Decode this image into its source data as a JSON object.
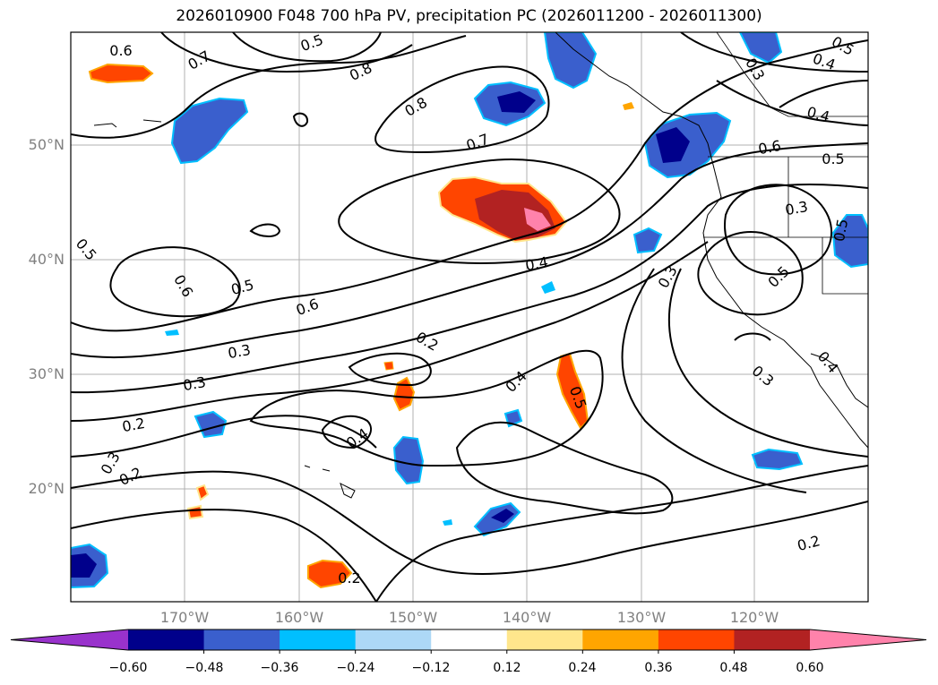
{
  "title": "2026010900 F048 700 hPa PV, precipitation PC (2026011200 - 2026011300)",
  "lat_labels": [
    "50°N",
    "40°N",
    "30°N",
    "20°N"
  ],
  "lon_labels": [
    "170°W",
    "160°W",
    "150°W",
    "140°W",
    "130°W",
    "120°W"
  ],
  "contour_labels": [
    "0.6",
    "0.7",
    "0.8",
    "0.8",
    "0.7",
    "0.3",
    "0.4",
    "0.5",
    "0.4",
    "0.6",
    "0.5",
    "0.3",
    "0.5",
    "0.5",
    "0.6",
    "0.5",
    "0.6",
    "0.4",
    "0.3",
    "0.5",
    "0.3",
    "0.2",
    "0.4",
    "0.5",
    "0.4",
    "0.2",
    "0.3",
    "0.2",
    "0.3",
    "0.2",
    "0.2",
    "0.4",
    "0.3",
    "0.5"
  ],
  "colorbar": {
    "ticks": [
      "−0.60",
      "−0.48",
      "−0.36",
      "−0.24",
      "−0.12",
      "0.12",
      "0.24",
      "0.36",
      "0.48",
      "0.60"
    ],
    "colors": [
      "#9932cc",
      "#00008b",
      "#3a5fcd",
      "#00bfff",
      "#add8f6",
      "#ffffff",
      "#ffe68c",
      "#ffa500",
      "#ff4500",
      "#b22222",
      "#ff82ab"
    ]
  }
}
